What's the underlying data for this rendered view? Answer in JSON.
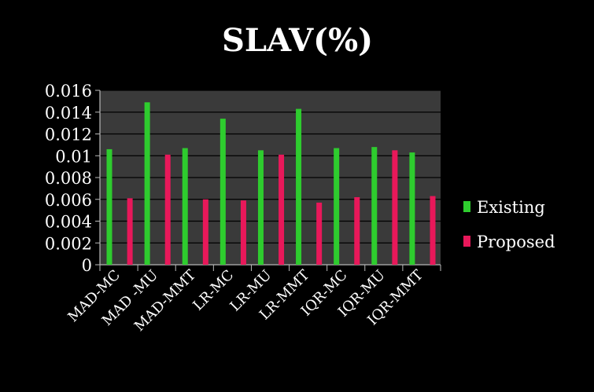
{
  "chart_data": {
    "type": "bar",
    "title": "SLAV(%)",
    "xlabel": "",
    "ylabel": "",
    "categories": [
      "MAD-MC",
      "MAD -MU",
      "MAD-MMT",
      "LR-MC",
      "LR-MU",
      "LR-MMT",
      "IQR-MC",
      "IQR-MU",
      "IQR-MMT"
    ],
    "series": [
      {
        "name": "Existing",
        "color": "#2ecc2e",
        "values": [
          0.0106,
          0.0149,
          0.0107,
          0.0134,
          0.0105,
          0.0143,
          0.0107,
          0.0108,
          0.0103
        ]
      },
      {
        "name": "Proposed",
        "color": "#e8185a",
        "values": [
          0.0061,
          0.0101,
          0.006,
          0.0059,
          0.0101,
          0.0057,
          0.0062,
          0.0105,
          0.0063
        ]
      }
    ],
    "ylim": [
      0,
      0.016
    ],
    "yticks": [
      "0",
      "0.002",
      "0.004",
      "0.006",
      "0.008",
      "0.01",
      "0.012",
      "0.014",
      "0.016"
    ],
    "grid": true,
    "legend_position": "right",
    "plot_background": "#3a3a3a",
    "background": "#000000"
  }
}
